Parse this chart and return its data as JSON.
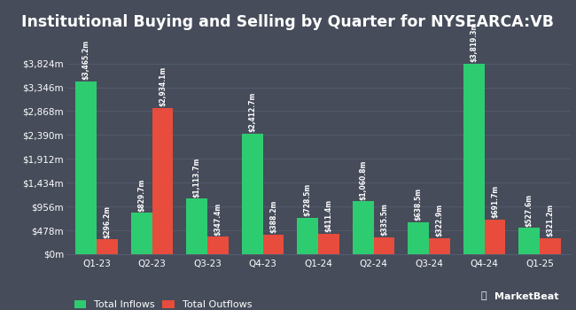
{
  "title": "Institutional Buying and Selling by Quarter for NYSEARCA:VB",
  "quarters": [
    "Q1-23",
    "Q2-23",
    "Q3-23",
    "Q4-23",
    "Q1-24",
    "Q2-24",
    "Q3-24",
    "Q4-24",
    "Q1-25"
  ],
  "inflows": [
    3465.2,
    829.7,
    1113.7,
    2412.7,
    728.5,
    1060.8,
    638.5,
    3819.3,
    527.6
  ],
  "outflows": [
    296.2,
    2934.1,
    347.4,
    388.2,
    411.4,
    335.5,
    322.9,
    691.7,
    321.2
  ],
  "inflow_labels": [
    "$3,465.2m",
    "$829.7m",
    "$1,113.7m",
    "$2,412.7m",
    "$728.5m",
    "$1,060.8m",
    "$638.5m",
    "$3,819.3m",
    "$527.6m"
  ],
  "outflow_labels": [
    "$296.2m",
    "$2,934.1m",
    "$347.4m",
    "$388.2m",
    "$411.4m",
    "$335.5m",
    "$322.9m",
    "$691.7m",
    "$321.2m"
  ],
  "inflow_color": "#2ecc71",
  "outflow_color": "#e74c3c",
  "background_color": "#464c5a",
  "grid_color": "#555d6e",
  "text_color": "#ffffff",
  "title_fontsize": 12.5,
  "label_fontsize": 5.5,
  "tick_fontsize": 7.5,
  "legend_fontsize": 8,
  "bar_width": 0.38,
  "yticks": [
    0,
    478,
    956,
    1434,
    1912,
    2390,
    2868,
    3346,
    3824
  ],
  "ytick_labels": [
    "$0m",
    "$478m",
    "$956m",
    "$1,434m",
    "$1,912m",
    "$2,390m",
    "$2,868m",
    "$3,346m",
    "$3,824m"
  ],
  "ylim": [
    0,
    4350
  ]
}
